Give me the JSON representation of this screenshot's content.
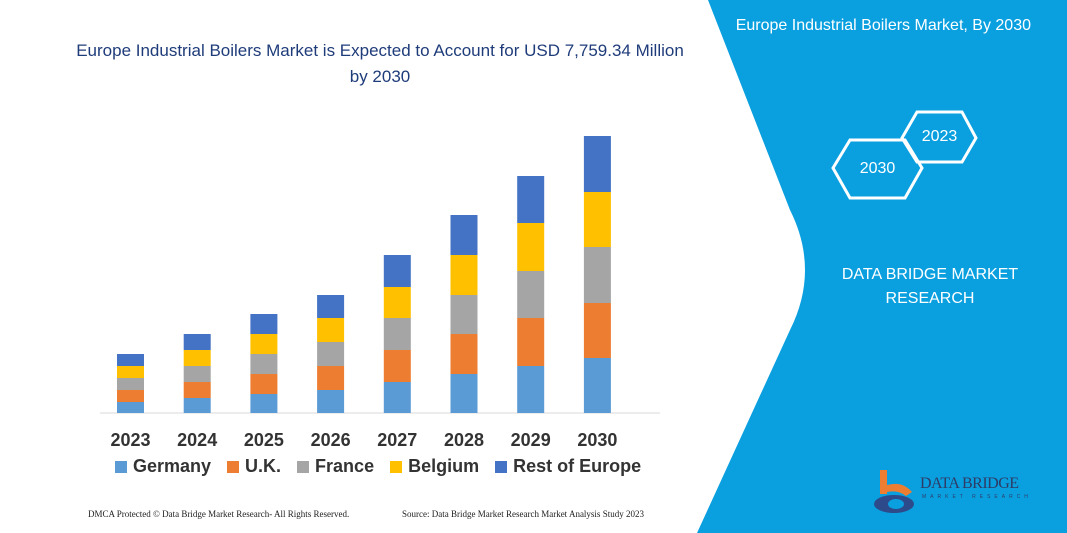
{
  "title": "Europe Industrial Boilers Market is Expected to Account for USD 7,759.34 Million by 2030",
  "side_panel": {
    "title": "Europe Industrial Boilers Market, By 2030",
    "hex_years": [
      "2030",
      "2023"
    ],
    "brand": "DATA BRIDGE MARKET RESEARCH",
    "logo_text": "DATA BRIDGE",
    "logo_sub": "MARKET RESEARCH",
    "color": "#0aa0e0"
  },
  "footer": {
    "left": "DMCA Protected © Data Bridge Market Research- All Rights Reserved.",
    "right": "Source: Data Bridge Market Research Market Analysis Study 2023"
  },
  "chart_data": {
    "type": "bar",
    "stacked": true,
    "title": "Europe Industrial Boilers Market is Expected to Account for USD 7,759.34 Million by 2030",
    "categories": [
      "2023",
      "2024",
      "2025",
      "2026",
      "2027",
      "2028",
      "2029",
      "2030"
    ],
    "series": [
      {
        "name": "Germany",
        "color": "#5b9bd5",
        "values": [
          11,
          15,
          19,
          23,
          31,
          39,
          47,
          55
        ]
      },
      {
        "name": "U.K.",
        "color": "#ed7d31",
        "values": [
          12,
          16,
          20,
          24,
          32,
          40,
          48,
          55
        ]
      },
      {
        "name": "France",
        "color": "#a5a5a5",
        "values": [
          12,
          16,
          20,
          24,
          32,
          39,
          47,
          56
        ]
      },
      {
        "name": "Belgium",
        "color": "#ffc000",
        "values": [
          12,
          16,
          20,
          24,
          31,
          40,
          48,
          55
        ]
      },
      {
        "name": "Rest of Europe",
        "color": "#4472c4",
        "values": [
          12,
          16,
          20,
          23,
          32,
          40,
          47,
          56
        ]
      }
    ],
    "ylim": [
      0,
      280
    ],
    "y_axis_shown": false,
    "grid": false,
    "legend": "bottom"
  }
}
